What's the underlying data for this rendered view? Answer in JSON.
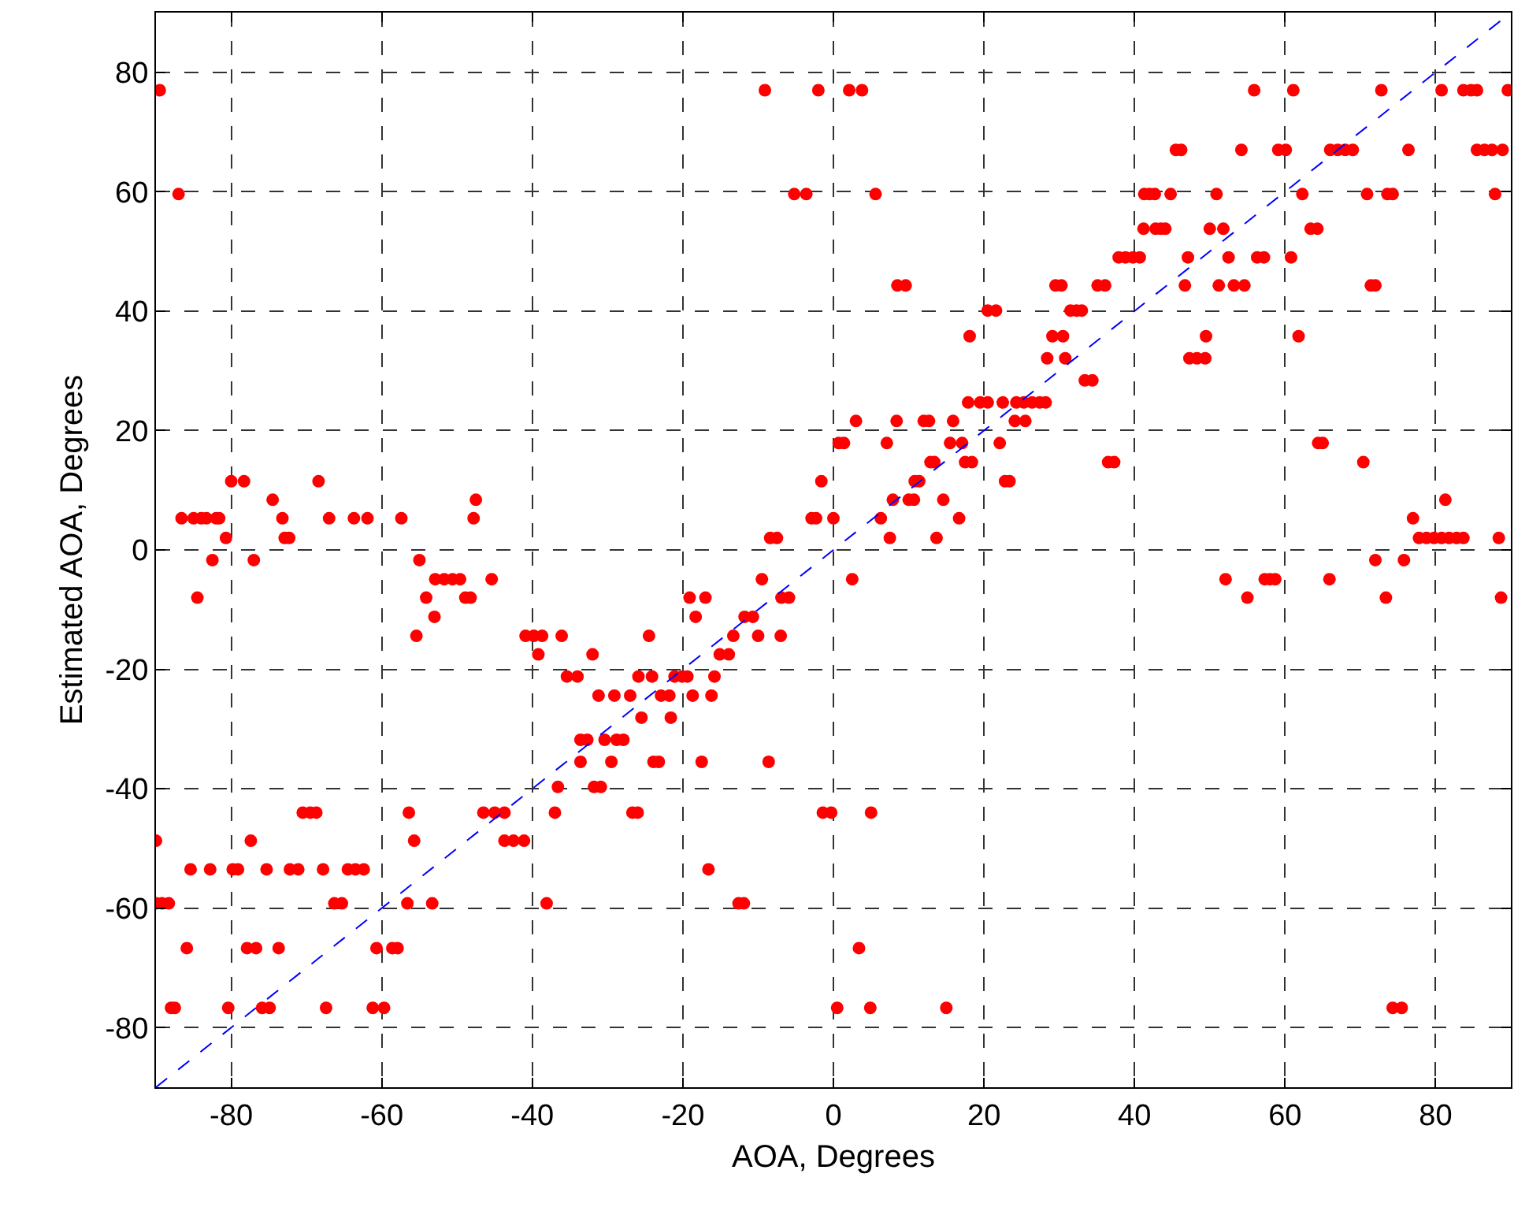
{
  "chart_data": {
    "type": "scatter",
    "xlabel": "AOA, Degrees",
    "ylabel": "Estimated AOA, Degrees",
    "xlim": [
      -90,
      90
    ],
    "ylim": [
      -90,
      90
    ],
    "xticks": [
      -80,
      -60,
      -40,
      -20,
      0,
      20,
      40,
      60,
      80
    ],
    "yticks": [
      -80,
      -60,
      -40,
      -20,
      0,
      20,
      40,
      60,
      80
    ],
    "grid": true,
    "marker": "circle",
    "series": [
      {
        "color": "#ff0000",
        "x": [
          -89.5,
          -9.1,
          -2,
          2.1,
          3.8,
          55.9,
          61.1,
          72.8,
          80.8,
          83.7,
          84.7,
          85.5,
          89.6,
          45.5,
          46.2,
          54.2,
          59.1,
          60.1,
          66,
          67,
          68,
          69,
          76.4,
          85.5,
          86.5,
          87.5,
          88.9,
          -87,
          -5.2,
          -3.6,
          5.6,
          41.3,
          42,
          42.7,
          44.8,
          50.9,
          62.3,
          70.9,
          73.6,
          74.3,
          87.9,
          41.2,
          42.8,
          43.5,
          44.1,
          50,
          51.8,
          63.4,
          64.3,
          37.9,
          38.8,
          39.8,
          40.7,
          47.1,
          52.5,
          56.3,
          57.2,
          60.8,
          8.5,
          9.6,
          29.5,
          30.3,
          35.1,
          36.1,
          46.7,
          51.2,
          53.2,
          54.6,
          71.4,
          72,
          20.5,
          21.6,
          31.5,
          32.3,
          33,
          18.1,
          29.1,
          30.5,
          49.5,
          61.8,
          28.4,
          30.8,
          47.3,
          48.3,
          49.4,
          33.4,
          34.4,
          17.9,
          19.5,
          20.5,
          22.5,
          24.3,
          25.3,
          26.4,
          27.4,
          28.2,
          3,
          8.4,
          12,
          12.7,
          15.9,
          24.1,
          25.5,
          0.7,
          1.4,
          7.1,
          15.5,
          17.1,
          22.1,
          64.4,
          65,
          12.9,
          13.4,
          17.5,
          18.4,
          36.5,
          37.3,
          70.4,
          -80,
          -78.3,
          -68.4,
          -1.6,
          10.8,
          11.4,
          22.8,
          23.4,
          -74.5,
          -47.5,
          7.9,
          10,
          10.7,
          14.6,
          81.3,
          -86.6,
          -85,
          -84,
          -83.3,
          -82,
          -81.6,
          -73.2,
          -67,
          -63.7,
          -61.9,
          -57.4,
          -47.8,
          -2.9,
          -2.3,
          0,
          6.3,
          16.7,
          77,
          -80.7,
          -72.9,
          -72.3,
          -8.4,
          -7.5,
          7.5,
          13.7,
          77.8,
          78.8,
          79.8,
          80.8,
          81.8,
          82.8,
          83.7,
          88.4,
          -82.5,
          -77,
          -55,
          72,
          75.8,
          -52.9,
          -51.7,
          -50.6,
          -49.6,
          -45.4,
          -9.5,
          2.5,
          52.1,
          57.3,
          58,
          58.7,
          65.9,
          -84.5,
          -54.1,
          -48.9,
          -48.2,
          -19.1,
          -17,
          -6.9,
          -5.9,
          55,
          73.4,
          88.7,
          -53,
          -18.3,
          -11.8,
          -10.7,
          -55.4,
          -40.9,
          -39.8,
          -38.7,
          -36.1,
          -24.5,
          -13.3,
          -10,
          -7,
          -39.2,
          -32,
          -15.1,
          -13.9,
          -35.4,
          -34,
          -25.9,
          -24.1,
          -21.1,
          -20.1,
          -19.4,
          -15.8,
          -31.2,
          -29.1,
          -27,
          -22.9,
          -21.8,
          -18.7,
          -16.2,
          -25.5,
          -21.6,
          -33.6,
          -32.7,
          -30.4,
          -28.8,
          -27.9,
          -33.6,
          -29.5,
          -23.9,
          -23.2,
          -17.5,
          -8.6,
          -36.6,
          -31.8,
          -30.9,
          -70.5,
          -69.5,
          -68.7,
          -56.4,
          -46.5,
          -45,
          -43.7,
          -37,
          -26.7,
          -26,
          -1.4,
          -0.3,
          5,
          -90,
          -77.4,
          -55.7,
          -43.7,
          -42.5,
          -41.1,
          -85.4,
          -82.8,
          -79.8,
          -79.1,
          -75.3,
          -72.2,
          -71.1,
          -67.8,
          -64.5,
          -63.5,
          -62.4,
          -16.6,
          -90,
          -89.2,
          -88.3,
          -66.3,
          -65.3,
          -56.6,
          -53.3,
          -38.1,
          -12.6,
          -11.9,
          -85.9,
          -77.9,
          -76.7,
          -73.7,
          -60.7,
          -58.6,
          -57.9,
          3.4,
          -88,
          -87.5,
          -80.4,
          -75.9,
          -74.9,
          -67.4,
          -61.2,
          -59.7,
          0.5,
          4.9,
          15,
          74.3,
          75.5
        ],
        "values": [
          77,
          77,
          77,
          77,
          77,
          77,
          77,
          77,
          77,
          77,
          77,
          77,
          77,
          67,
          67,
          67,
          67,
          67,
          67,
          67,
          67,
          67,
          67,
          67,
          67,
          67,
          67,
          59.6,
          59.6,
          59.6,
          59.6,
          59.6,
          59.6,
          59.6,
          59.6,
          59.6,
          59.6,
          59.6,
          59.6,
          59.6,
          59.6,
          53.8,
          53.8,
          53.8,
          53.8,
          53.8,
          53.8,
          53.8,
          53.8,
          49,
          49,
          49,
          49,
          49,
          49,
          49,
          49,
          49,
          44.3,
          44.3,
          44.3,
          44.3,
          44.3,
          44.3,
          44.3,
          44.3,
          44.3,
          44.3,
          44.3,
          44.3,
          40.1,
          40.1,
          40.1,
          40.1,
          40.1,
          35.8,
          35.8,
          35.8,
          35.8,
          35.8,
          32.1,
          32.1,
          32.1,
          32.1,
          32.1,
          28.4,
          28.4,
          24.7,
          24.7,
          24.7,
          24.7,
          24.7,
          24.7,
          24.7,
          24.7,
          24.7,
          21.6,
          21.6,
          21.6,
          21.6,
          21.6,
          21.6,
          21.6,
          17.9,
          17.9,
          17.9,
          17.9,
          17.9,
          17.9,
          17.9,
          17.9,
          14.7,
          14.7,
          14.7,
          14.7,
          14.7,
          14.7,
          14.7,
          11.5,
          11.5,
          11.5,
          11.5,
          11.5,
          11.5,
          11.5,
          11.5,
          8.4,
          8.4,
          8.4,
          8.4,
          8.4,
          8.4,
          8.4,
          5.3,
          5.3,
          5.3,
          5.3,
          5.3,
          5.3,
          5.3,
          5.3,
          5.3,
          5.3,
          5.3,
          5.3,
          5.3,
          5.3,
          5.3,
          5.3,
          5.3,
          5.3,
          2,
          2,
          2,
          2,
          2,
          2,
          2,
          2,
          2,
          2,
          2,
          2,
          2,
          2,
          2,
          -1.7,
          -1.7,
          -1.7,
          -1.7,
          -1.7,
          -4.9,
          -4.9,
          -4.9,
          -4.9,
          -4.9,
          -4.9,
          -4.9,
          -4.9,
          -4.9,
          -4.9,
          -4.9,
          -4.9,
          -8,
          -8,
          -8,
          -8,
          -8,
          -8,
          -8,
          -8,
          -8,
          -8,
          -8,
          -11.2,
          -11.2,
          -11.2,
          -11.2,
          -14.4,
          -14.4,
          -14.4,
          -14.4,
          -14.4,
          -14.4,
          -14.4,
          -14.4,
          -14.4,
          -17.5,
          -17.5,
          -17.5,
          -17.5,
          -21.2,
          -21.2,
          -21.2,
          -21.2,
          -21.2,
          -21.2,
          -21.2,
          -21.2,
          -24.4,
          -24.4,
          -24.4,
          -24.4,
          -24.4,
          -24.4,
          -24.4,
          -28.1,
          -28.1,
          -31.8,
          -31.8,
          -31.8,
          -31.8,
          -31.8,
          -35.5,
          -35.5,
          -35.5,
          -35.5,
          -35.5,
          -35.5,
          -39.7,
          -39.7,
          -39.7,
          -44,
          -44,
          -44,
          -44,
          -44,
          -44,
          -44,
          -44,
          -44,
          -44,
          -44,
          -44,
          -44,
          -48.7,
          -48.7,
          -48.7,
          -48.7,
          -48.7,
          -48.7,
          -53.5,
          -53.5,
          -53.5,
          -53.5,
          -53.5,
          -53.5,
          -53.5,
          -53.5,
          -53.5,
          -53.5,
          -53.5,
          -53.5,
          -59.2,
          -59.2,
          -59.2,
          -59.2,
          -59.2,
          -59.2,
          -59.2,
          -59.2,
          -59.2,
          -59.2,
          -66.7,
          -66.7,
          -66.7,
          -66.7,
          -66.7,
          -66.7,
          -66.7,
          -66.7,
          -76.7,
          -76.7,
          -76.7,
          -76.7,
          -76.7,
          -76.7,
          -76.7,
          -76.7,
          -76.7,
          -76.7,
          -76.7,
          -76.7,
          -76.7
        ]
      },
      {
        "type": "line",
        "color": "#0000ff",
        "line_style": "dashed",
        "marker": "none",
        "x": [
          -90,
          90
        ],
        "values": [
          -90,
          90
        ]
      }
    ]
  }
}
